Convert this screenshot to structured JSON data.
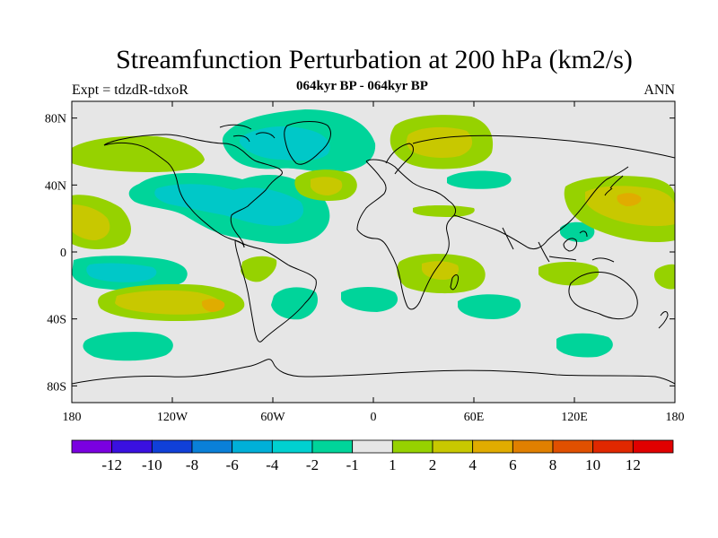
{
  "title": "Streamfunction Perturbation at 200 hPa (km2/s)",
  "subtitle_left": "Expt = tdzdR-tdxoR",
  "subtitle_center": "064kyr BP - 064kyr BP",
  "subtitle_right": "ANN",
  "colors": {
    "background": "#e6e6e6",
    "land_outline": "#000000",
    "negative_1": "#00d49a",
    "negative_2": "#00c8c8",
    "positive_1": "#96d200",
    "positive_2": "#c8c800",
    "positive_3": "#e0ac00"
  },
  "map": {
    "lat_ticks": [
      {
        "label": "80N",
        "lat": 80
      },
      {
        "label": "40N",
        "lat": 40
      },
      {
        "label": "0",
        "lat": 0
      },
      {
        "label": "40S",
        "lat": -40
      },
      {
        "label": "80S",
        "lat": -80
      }
    ],
    "lon_ticks": [
      {
        "label": "180",
        "lon": -180
      },
      {
        "label": "120W",
        "lon": -120
      },
      {
        "label": "60W",
        "lon": -60
      },
      {
        "label": "0",
        "lon": 0
      },
      {
        "label": "60E",
        "lon": 60
      },
      {
        "label": "120E",
        "lon": 120
      },
      {
        "label": "180",
        "lon": 180
      }
    ],
    "lon_range": [
      -180,
      180
    ],
    "lat_range": [
      -90,
      90
    ]
  },
  "colorbar": {
    "colors": [
      "#7a00e0",
      "#3a10e0",
      "#1040d8",
      "#0a80d8",
      "#00b0d8",
      "#00d0d0",
      "#00d49a",
      "#e6e6e6",
      "#96d200",
      "#c8c800",
      "#e0ac00",
      "#e08000",
      "#e05000",
      "#e02800",
      "#e00000"
    ],
    "labels": [
      "-12",
      "-10",
      "-8",
      "-6",
      "-4",
      "-2",
      "-1",
      "1",
      "2",
      "4",
      "6",
      "8",
      "10",
      "12"
    ]
  }
}
